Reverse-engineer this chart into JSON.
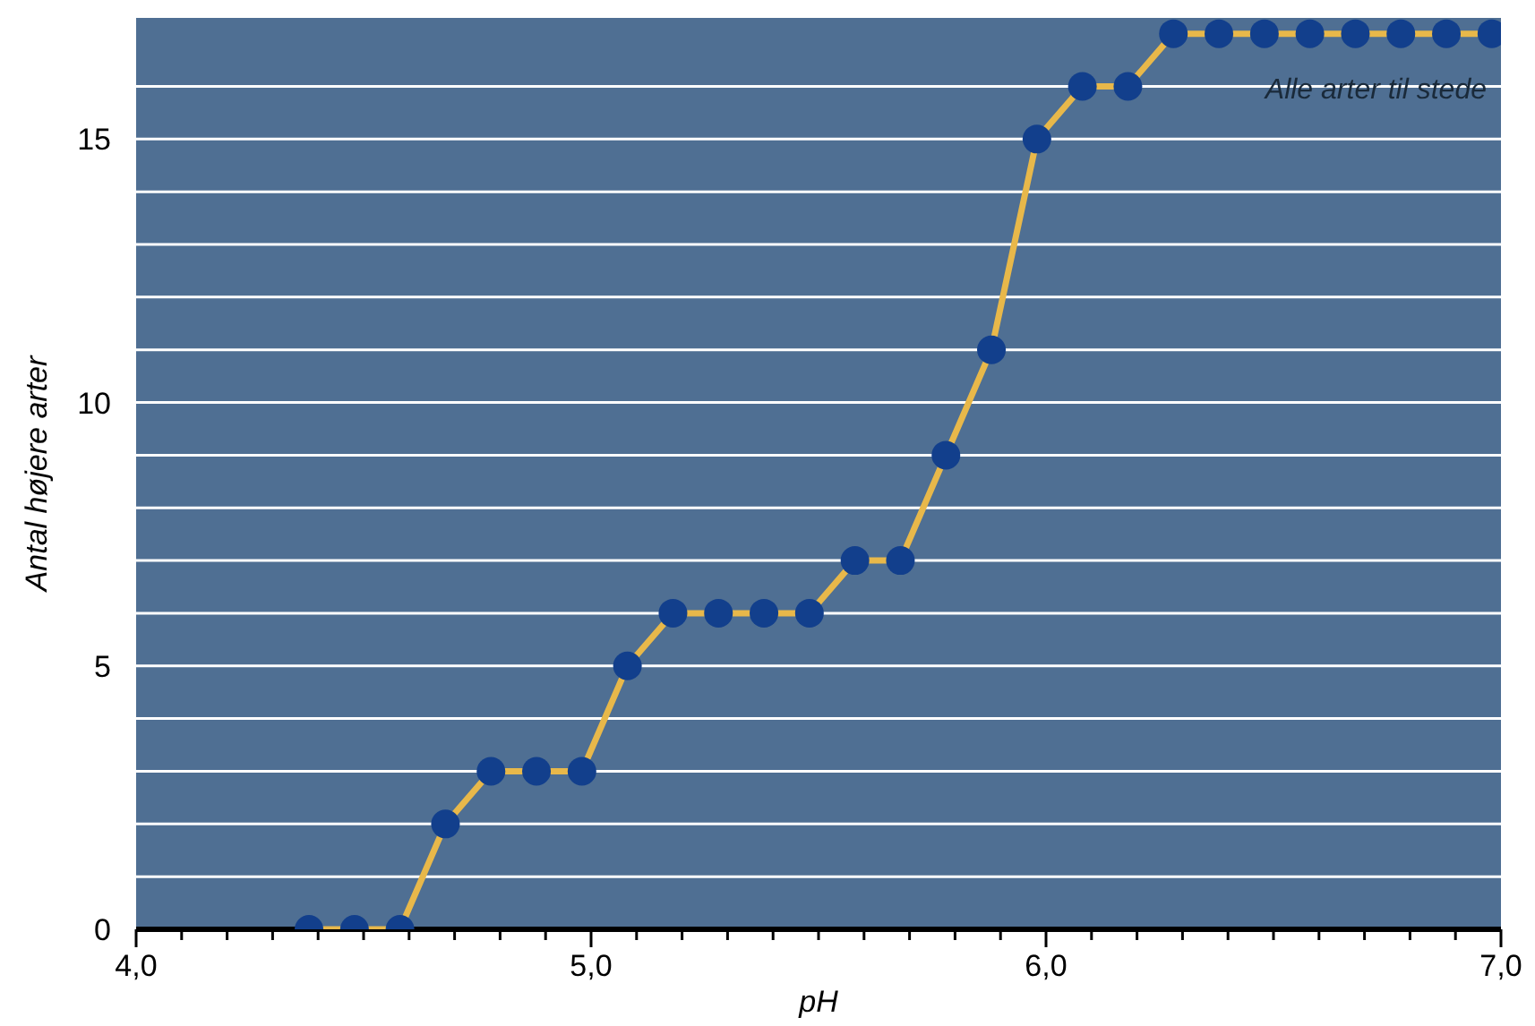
{
  "chart_data": {
    "type": "line",
    "xlabel": "pH",
    "ylabel": "Antal højere arter",
    "annotations": [
      "Alle arter til stede"
    ],
    "series": [
      {
        "color": "#e8b84a",
        "values": [
          0,
          0,
          0,
          2,
          3,
          3,
          3,
          5,
          6,
          6,
          6,
          6,
          7,
          7,
          9,
          11,
          15,
          16,
          16,
          17,
          17,
          17,
          17,
          17,
          17,
          17,
          17
        ],
        "x": [
          4.38,
          4.48,
          4.58,
          4.68,
          4.78,
          4.88,
          4.98,
          5.08,
          5.18,
          5.28,
          5.38,
          5.48,
          5.58,
          5.68,
          5.78,
          5.88,
          5.98,
          6.08,
          6.18,
          6.28,
          6.38,
          6.48,
          6.58,
          6.68,
          6.78,
          6.88,
          6.98
        ]
      }
    ],
    "marker": "circle",
    "line_style": "solid",
    "grid": "y",
    "xlim": [
      4,
      7
    ],
    "ylim": [
      0,
      17.3
    ],
    "xticks": [
      {
        "value": 4,
        "label": "4,0"
      },
      {
        "value": 4.1,
        "label": null
      },
      {
        "value": 4.2,
        "label": null
      },
      {
        "value": 4.3,
        "label": null
      },
      {
        "value": 4.4,
        "label": null
      },
      {
        "value": 4.5,
        "label": null
      },
      {
        "value": 4.6,
        "label": null
      },
      {
        "value": 4.7,
        "label": null
      },
      {
        "value": 4.8,
        "label": null
      },
      {
        "value": 4.9,
        "label": null
      },
      {
        "value": 5,
        "label": "5,0"
      },
      {
        "value": 5.1,
        "label": null
      },
      {
        "value": 5.2,
        "label": null
      },
      {
        "value": 5.3,
        "label": null
      },
      {
        "value": 5.4,
        "label": null
      },
      {
        "value": 5.5,
        "label": null
      },
      {
        "value": 5.6,
        "label": null
      },
      {
        "value": 5.7,
        "label": null
      },
      {
        "value": 5.8,
        "label": null
      },
      {
        "value": 5.9,
        "label": null
      },
      {
        "value": 6,
        "label": "6,0"
      },
      {
        "value": 6.1,
        "label": null
      },
      {
        "value": 6.2,
        "label": null
      },
      {
        "value": 6.3,
        "label": null
      },
      {
        "value": 6.4,
        "label": null
      },
      {
        "value": 6.5,
        "label": null
      },
      {
        "value": 6.6,
        "label": null
      },
      {
        "value": 6.7,
        "label": null
      },
      {
        "value": 6.8,
        "label": null
      },
      {
        "value": 6.9,
        "label": null
      },
      {
        "value": 7,
        "label": "7,0"
      }
    ],
    "yticks": [
      0,
      {
        "value": 1,
        "label": null
      },
      {
        "value": 2,
        "label": null
      },
      {
        "value": 3,
        "label": null
      },
      {
        "value": 4,
        "label": null
      },
      5,
      {
        "value": 6,
        "label": null
      },
      {
        "value": 7,
        "label": null
      },
      {
        "value": 8,
        "label": null
      },
      {
        "value": 9,
        "label": null
      },
      10,
      {
        "value": 11,
        "label": null
      },
      {
        "value": 12,
        "label": null
      },
      {
        "value": 13,
        "label": null
      },
      {
        "value": 14,
        "label": null
      },
      15,
      {
        "value": 16,
        "label": null
      }
    ]
  }
}
